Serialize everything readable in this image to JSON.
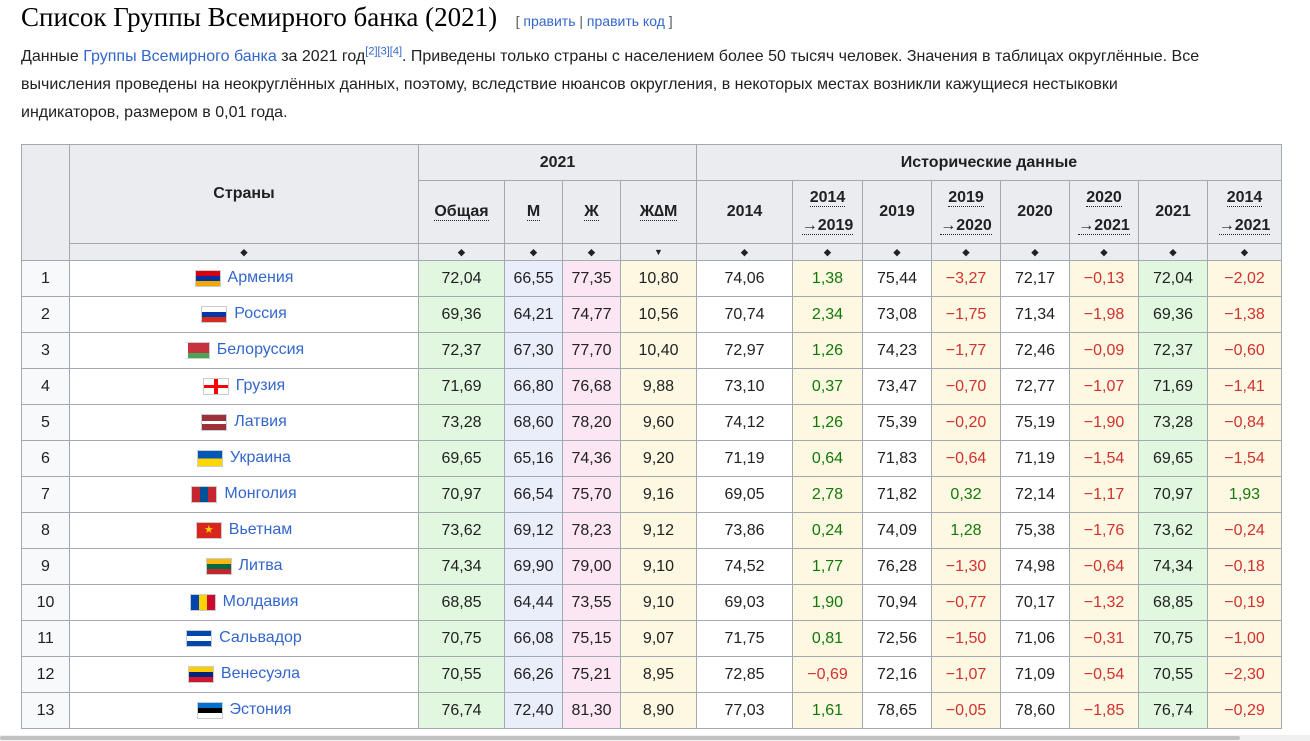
{
  "heading": {
    "title": "Список Группы Всемирного банка (2021)",
    "edit_open": "[ ",
    "edit": "править",
    "sep": " | ",
    "edit_code": "править код",
    "edit_close": " ]"
  },
  "intro": {
    "t1": "Данные ",
    "link": "Группы Всемирного банка",
    "t2": " за 2021 год",
    "refs": [
      "[2]",
      "[3]",
      "[4]"
    ],
    "t3": ". Приведены только страны с населением более 50 тысяч человек. Значения в таблицах округлённые. Все",
    "line2": "вычисления проведены на неокруглённых данных, поэтому, вследствие нюансов округления, в некоторых местах возникли кажущиеся нестыковки",
    "line3": "индикаторов, размером в 0,01 года."
  },
  "table": {
    "countries_header": "Страны",
    "group_2021": "2021",
    "group_hist": "Исторические данные",
    "col_total": "Общая",
    "col_m": "М",
    "col_f": "Ж",
    "col_diff": "Ж∆М",
    "hist_cols": [
      {
        "l1": "2014",
        "l2": ""
      },
      {
        "l1": "2014",
        "l2": "→2019"
      },
      {
        "l1": "2019",
        "l2": ""
      },
      {
        "l1": "2019",
        "l2": "→2020"
      },
      {
        "l1": "2020",
        "l2": ""
      },
      {
        "l1": "2020",
        "l2": "→2021"
      },
      {
        "l1": "2021",
        "l2": ""
      },
      {
        "l1": "2014",
        "l2": "→2021"
      }
    ],
    "sort_icon": "◆",
    "sort_icon_active": "▼",
    "rows": [
      {
        "rank": "1",
        "country": "Армения",
        "flag": [
          "#d90012",
          "#0033a0",
          "#f2a800"
        ],
        "flag_type": "h3",
        "v": [
          "72,04",
          "66,55",
          "77,35",
          "10,80",
          "74,06",
          "1,38",
          "75,44",
          "−3,27",
          "72,17",
          "−0,13",
          "72,04",
          "−2,02"
        ]
      },
      {
        "rank": "2",
        "country": "Россия",
        "flag": [
          "#ffffff",
          "#0039a6",
          "#d52b1e"
        ],
        "flag_type": "h3",
        "v": [
          "69,36",
          "64,21",
          "74,77",
          "10,56",
          "70,74",
          "2,34",
          "73,08",
          "−1,75",
          "71,34",
          "−1,98",
          "69,36",
          "−1,38"
        ]
      },
      {
        "rank": "3",
        "country": "Белоруссия",
        "flag": [
          "#c8313e",
          "#c8313e",
          "#4aa657"
        ],
        "flag_type": "by",
        "v": [
          "72,37",
          "67,30",
          "77,70",
          "10,40",
          "72,97",
          "1,26",
          "74,23",
          "−1,77",
          "72,46",
          "−0,09",
          "72,37",
          "−0,60"
        ]
      },
      {
        "rank": "4",
        "country": "Грузия",
        "flag": [
          "#ffffff",
          "#ff0000",
          "#ff0000"
        ],
        "flag_type": "ge",
        "v": [
          "71,69",
          "66,80",
          "76,68",
          "9,88",
          "73,10",
          "0,37",
          "73,47",
          "−0,70",
          "72,77",
          "−1,07",
          "71,69",
          "−1,41"
        ]
      },
      {
        "rank": "5",
        "country": "Латвия",
        "flag": [
          "#9e3039",
          "#ffffff",
          "#9e3039"
        ],
        "flag_type": "lv",
        "v": [
          "73,28",
          "68,60",
          "78,20",
          "9,60",
          "74,12",
          "1,26",
          "75,39",
          "−0,20",
          "75,19",
          "−1,90",
          "73,28",
          "−0,84"
        ]
      },
      {
        "rank": "6",
        "country": "Украина",
        "flag": [
          "#0057b7",
          "#ffd700"
        ],
        "flag_type": "h2",
        "v": [
          "69,65",
          "65,16",
          "74,36",
          "9,20",
          "71,19",
          "0,64",
          "71,83",
          "−0,64",
          "71,19",
          "−1,54",
          "69,65",
          "−1,54"
        ]
      },
      {
        "rank": "7",
        "country": "Монголия",
        "flag": [
          "#c4272f",
          "#015197",
          "#c4272f"
        ],
        "flag_type": "v3",
        "v": [
          "70,97",
          "66,54",
          "75,70",
          "9,16",
          "69,05",
          "2,78",
          "71,82",
          "0,32",
          "72,14",
          "−1,17",
          "70,97",
          "1,93"
        ]
      },
      {
        "rank": "8",
        "country": "Вьетнам",
        "flag": [
          "#da251d",
          "#ffcd00"
        ],
        "flag_type": "vn",
        "v": [
          "73,62",
          "69,12",
          "78,23",
          "9,12",
          "73,86",
          "0,24",
          "74,09",
          "1,28",
          "75,38",
          "−1,76",
          "73,62",
          "−0,24"
        ]
      },
      {
        "rank": "9",
        "country": "Литва",
        "flag": [
          "#fdb913",
          "#006a44",
          "#c1272d"
        ],
        "flag_type": "h3",
        "v": [
          "74,34",
          "69,90",
          "79,00",
          "9,10",
          "74,52",
          "1,77",
          "76,28",
          "−1,30",
          "74,98",
          "−0,64",
          "74,34",
          "−0,18"
        ]
      },
      {
        "rank": "10",
        "country": "Молдавия",
        "flag": [
          "#0046ae",
          "#ffd200",
          "#cc092f"
        ],
        "flag_type": "v3",
        "v": [
          "68,85",
          "64,44",
          "73,55",
          "9,10",
          "69,03",
          "1,90",
          "70,94",
          "−0,77",
          "70,17",
          "−1,32",
          "68,85",
          "−0,19"
        ]
      },
      {
        "rank": "11",
        "country": "Сальвадор",
        "flag": [
          "#0047ab",
          "#ffffff",
          "#0047ab"
        ],
        "flag_type": "h3",
        "v": [
          "70,75",
          "66,08",
          "75,15",
          "9,07",
          "71,75",
          "0,81",
          "72,56",
          "−1,50",
          "71,06",
          "−0,31",
          "70,75",
          "−1,00"
        ]
      },
      {
        "rank": "12",
        "country": "Венесуэла",
        "flag": [
          "#ffcc00",
          "#00247d",
          "#cf142b"
        ],
        "flag_type": "h3",
        "v": [
          "70,55",
          "66,26",
          "75,21",
          "8,95",
          "72,85",
          "−0,69",
          "72,16",
          "−1,07",
          "71,09",
          "−0,54",
          "70,55",
          "−2,30"
        ]
      },
      {
        "rank": "13",
        "country": "Эстония",
        "flag": [
          "#0072ce",
          "#000000",
          "#ffffff"
        ],
        "flag_type": "h3",
        "v": [
          "76,74",
          "72,40",
          "81,30",
          "8,90",
          "77,03",
          "1,61",
          "78,65",
          "−0,05",
          "78,60",
          "−1,85",
          "76,74",
          "−0,29"
        ]
      }
    ]
  }
}
